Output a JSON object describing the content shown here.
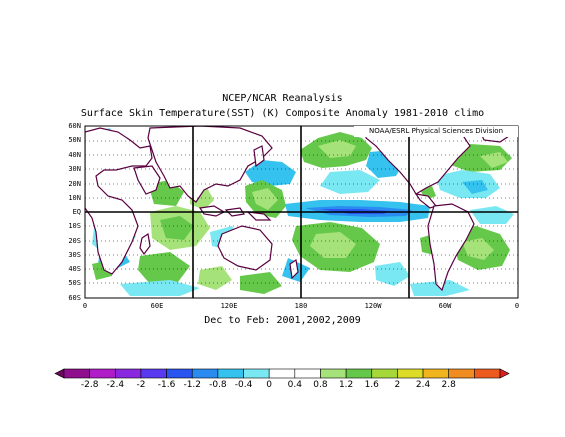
{
  "header": {
    "title": "NCEP/NCAR Reanalysis",
    "subtitle": "Surface Skin Temperature(SST) (K) Composite Anomaly 1981-2010 climo"
  },
  "credit": "NOAA/ESRL Physical Sciences Division",
  "period": "Dec to Feb: 2001,2002,2009",
  "lat_labels": [
    "60N",
    "50N",
    "40N",
    "30N",
    "20N",
    "10N",
    "EQ",
    "10S",
    "20S",
    "30S",
    "40S",
    "50S",
    "60S"
  ],
  "lon_labels": [
    "0",
    "60E",
    "120E",
    "180",
    "120W",
    "60W",
    "0"
  ],
  "colorbar": {
    "labels": [
      "-2.8",
      "-2.4",
      "-2",
      "-1.6",
      "-1.2",
      "-0.8",
      "-0.4",
      "0",
      "0.4",
      "0.8",
      "1.2",
      "1.6",
      "2",
      "2.4",
      "2.8"
    ],
    "colors": [
      "#6a0a5a",
      "#8e0e8e",
      "#b01cc8",
      "#8a28e0",
      "#5a3af0",
      "#2a54f0",
      "#2a8cf0",
      "#35c2ee",
      "#7ae8f2",
      "#ffffff",
      "#ffffff",
      "#a6e27a",
      "#66c84a",
      "#a6d83a",
      "#dcdc28",
      "#f0b41e",
      "#f08c20",
      "#ec5a1e",
      "#dc2020"
    ]
  }
}
